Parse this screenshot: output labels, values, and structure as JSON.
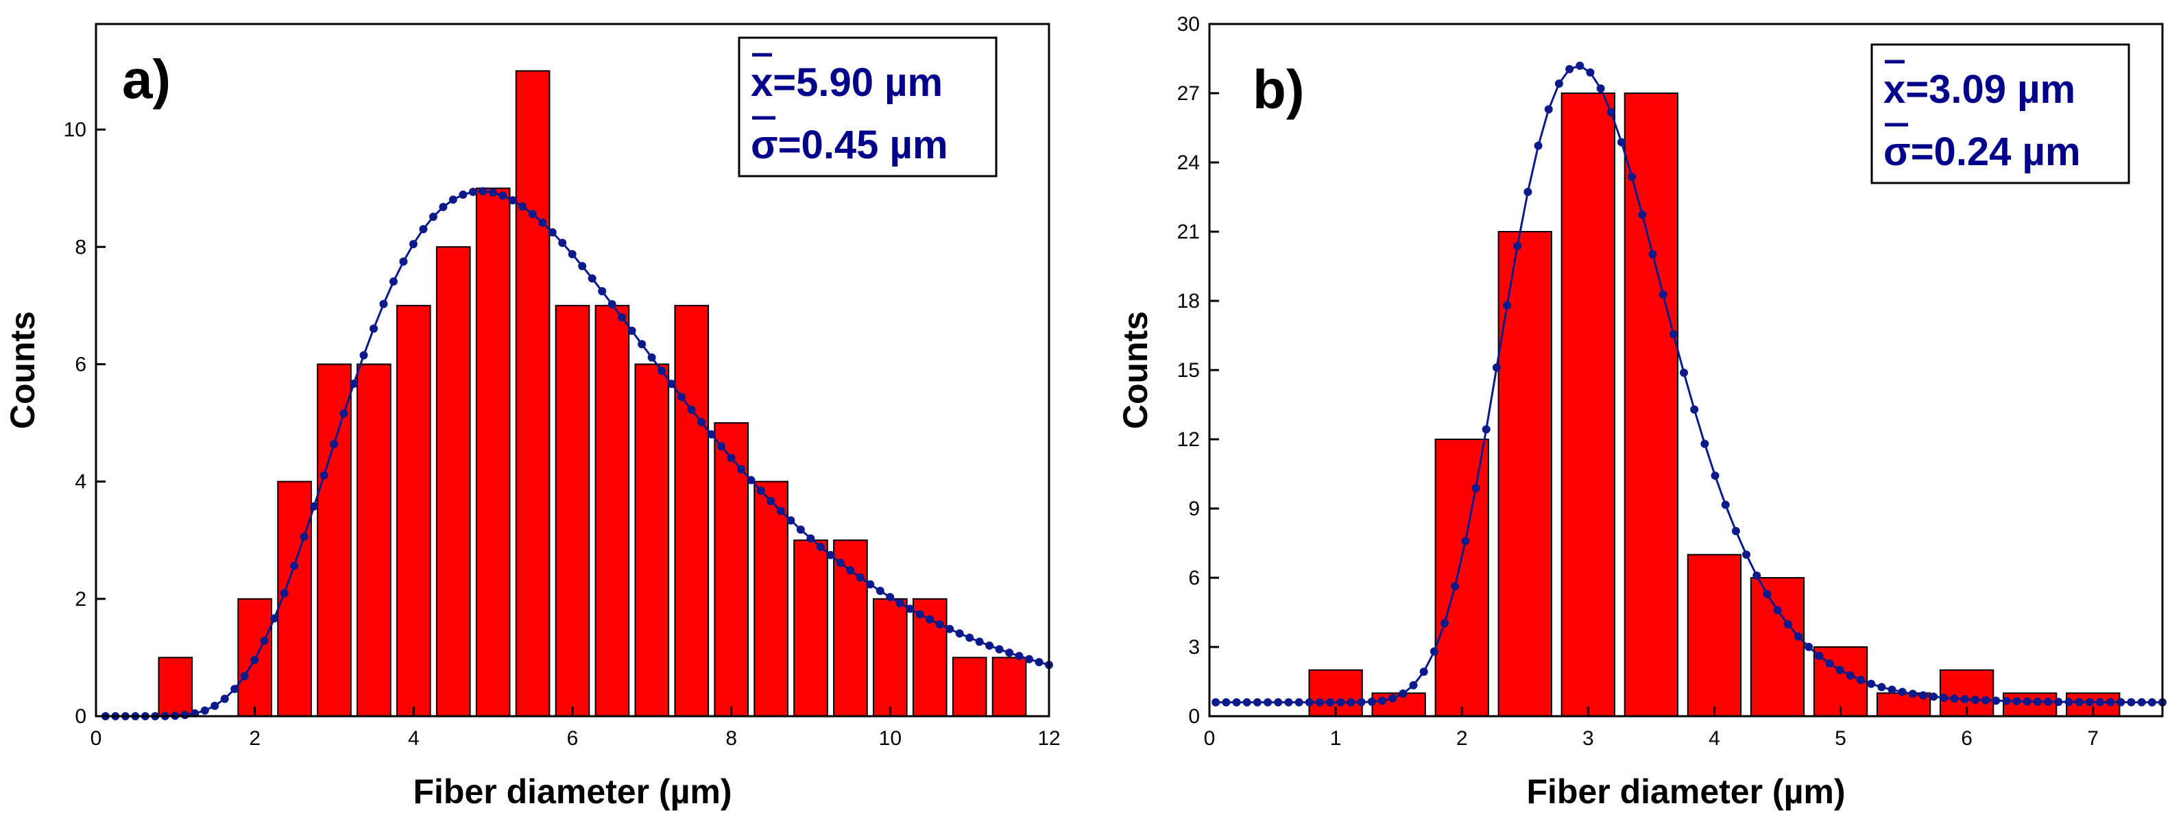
{
  "colors": {
    "bar": "#ff0000",
    "fit": "#0b1a8a",
    "stats": "#00008b",
    "axis": "#000000"
  },
  "chart_data": [
    {
      "type": "bar",
      "panel": "a)",
      "xlabel": "Fiber diameter (µm)",
      "ylabel": "Counts",
      "xlim": [
        0,
        12
      ],
      "ylim": [
        0,
        11.8
      ],
      "xticks": [
        0,
        2,
        4,
        6,
        8,
        10,
        12
      ],
      "yticks": [
        0,
        2,
        4,
        6,
        8,
        10
      ],
      "bar_width": 0.42,
      "bins": [
        {
          "x": 1.0,
          "count": 1
        },
        {
          "x": 2.0,
          "count": 2
        },
        {
          "x": 2.5,
          "count": 4
        },
        {
          "x": 3.0,
          "count": 6
        },
        {
          "x": 3.5,
          "count": 6
        },
        {
          "x": 4.0,
          "count": 7
        },
        {
          "x": 4.5,
          "count": 8
        },
        {
          "x": 5.0,
          "count": 9
        },
        {
          "x": 5.5,
          "count": 11
        },
        {
          "x": 6.0,
          "count": 7
        },
        {
          "x": 6.5,
          "count": 7
        },
        {
          "x": 7.0,
          "count": 6
        },
        {
          "x": 7.5,
          "count": 7
        },
        {
          "x": 8.0,
          "count": 5
        },
        {
          "x": 8.5,
          "count": 4
        },
        {
          "x": 9.0,
          "count": 3
        },
        {
          "x": 9.5,
          "count": 3
        },
        {
          "x": 10.0,
          "count": 2
        },
        {
          "x": 10.5,
          "count": 2
        },
        {
          "x": 11.0,
          "count": 1
        },
        {
          "x": 11.5,
          "count": 1
        }
      ],
      "fit": {
        "model": "lognormal",
        "amplitude": 8.95,
        "mode": 4.85,
        "sigma_log": 0.42,
        "offset": 0,
        "x_start": 0.12,
        "x_end": 12,
        "points": 96
      },
      "stats": {
        "mean_label": "x",
        "mean_value": "=5.90 µm",
        "sd_label": "σ",
        "sd_value": "=0.45 µm"
      }
    },
    {
      "type": "bar",
      "panel": "b)",
      "xlabel": "Fiber diameter (µm)",
      "ylabel": "Counts",
      "xlim": [
        0,
        7.55
      ],
      "ylim": [
        0,
        30
      ],
      "xticks": [
        0,
        1,
        2,
        3,
        4,
        5,
        6,
        7
      ],
      "yticks": [
        0,
        3,
        6,
        9,
        12,
        15,
        18,
        21,
        24,
        27,
        30
      ],
      "bar_width": 0.42,
      "bins": [
        {
          "x": 1.0,
          "count": 2
        },
        {
          "x": 1.5,
          "count": 1
        },
        {
          "x": 2.0,
          "count": 12
        },
        {
          "x": 2.5,
          "count": 21
        },
        {
          "x": 3.0,
          "count": 27
        },
        {
          "x": 3.5,
          "count": 27
        },
        {
          "x": 4.0,
          "count": 7
        },
        {
          "x": 4.5,
          "count": 6
        },
        {
          "x": 5.0,
          "count": 3
        },
        {
          "x": 5.5,
          "count": 1
        },
        {
          "x": 6.0,
          "count": 2
        },
        {
          "x": 6.5,
          "count": 1
        },
        {
          "x": 7.0,
          "count": 1
        }
      ],
      "fit": {
        "model": "lognormal",
        "amplitude": 27.6,
        "mode": 2.92,
        "sigma_log": 0.22,
        "offset": 0.6,
        "x_start": 0.05,
        "x_end": 7.55,
        "points": 92
      },
      "stats": {
        "mean_label": "x",
        "mean_value": "=3.09 µm",
        "sd_label": "σ",
        "sd_value": "=0.24 µm"
      }
    }
  ]
}
